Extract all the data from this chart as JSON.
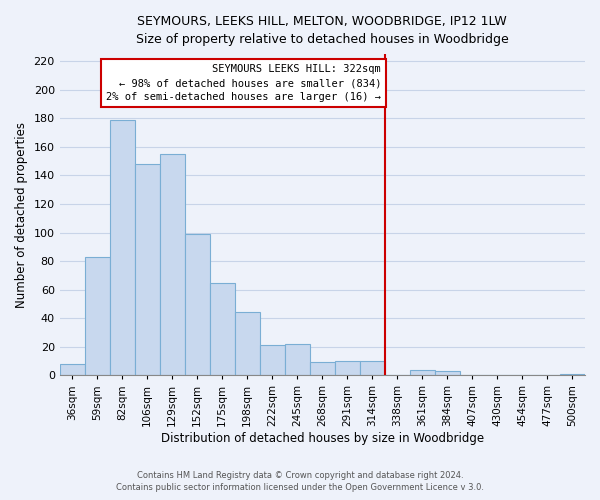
{
  "title": "SEYMOURS, LEEKS HILL, MELTON, WOODBRIDGE, IP12 1LW",
  "subtitle": "Size of property relative to detached houses in Woodbridge",
  "xlabel": "Distribution of detached houses by size in Woodbridge",
  "ylabel": "Number of detached properties",
  "bar_color": "#c8d8ee",
  "bar_edge_color": "#7aaed4",
  "background_color": "#eef2fa",
  "grid_color": "#c8d4e8",
  "categories": [
    "36sqm",
    "59sqm",
    "82sqm",
    "106sqm",
    "129sqm",
    "152sqm",
    "175sqm",
    "198sqm",
    "222sqm",
    "245sqm",
    "268sqm",
    "291sqm",
    "314sqm",
    "338sqm",
    "361sqm",
    "384sqm",
    "407sqm",
    "430sqm",
    "454sqm",
    "477sqm",
    "500sqm"
  ],
  "values": [
    8,
    83,
    179,
    148,
    155,
    99,
    65,
    44,
    21,
    22,
    9,
    10,
    10,
    0,
    4,
    3,
    0,
    0,
    0,
    0,
    1
  ],
  "ylim": [
    0,
    225
  ],
  "yticks": [
    0,
    20,
    40,
    60,
    80,
    100,
    120,
    140,
    160,
    180,
    200,
    220
  ],
  "annotation_title": "SEYMOURS LEEKS HILL: 322sqm",
  "annotation_line1": "← 98% of detached houses are smaller (834)",
  "annotation_line2": "2% of semi-detached houses are larger (16) →",
  "red_line_bin_index": 13,
  "footer1": "Contains HM Land Registry data © Crown copyright and database right 2024.",
  "footer2": "Contains public sector information licensed under the Open Government Licence v 3.0."
}
